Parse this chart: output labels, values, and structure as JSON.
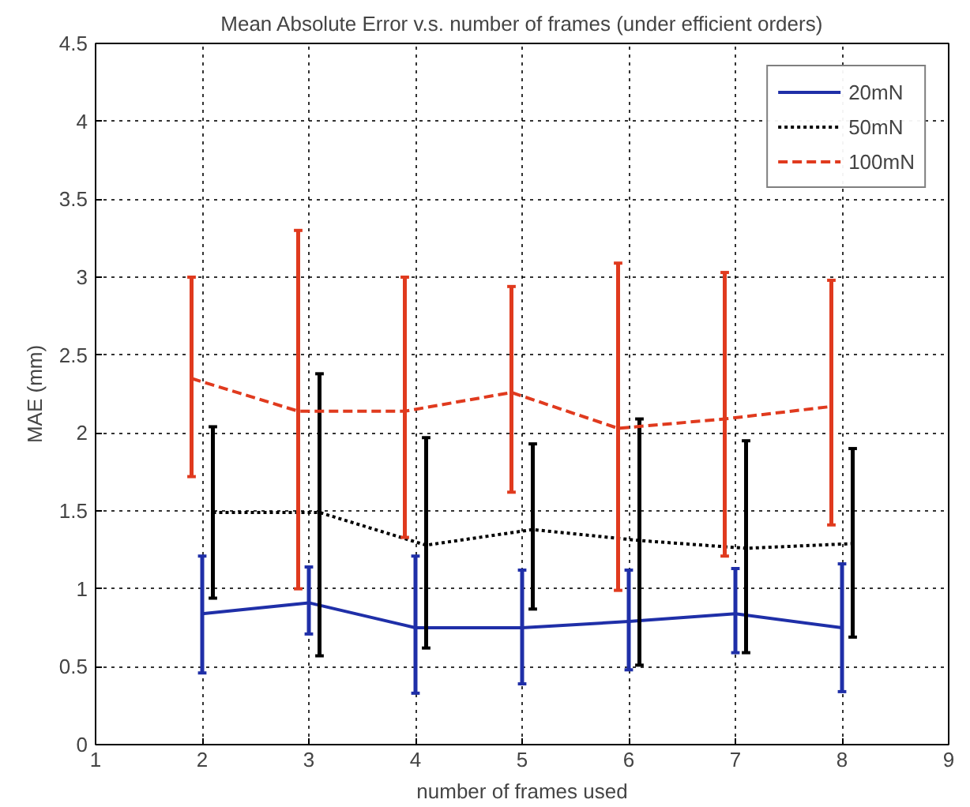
{
  "chart_data": {
    "type": "line",
    "title": "Mean Absolute Error v.s. number of frames (under efficient orders)",
    "xlabel": "number of frames used",
    "ylabel": "MAE (mm)",
    "xlim": [
      1,
      9
    ],
    "ylim": [
      0,
      4.5
    ],
    "xticks": [
      1,
      2,
      3,
      4,
      5,
      6,
      7,
      8,
      9
    ],
    "yticks": [
      0,
      0.5,
      1,
      1.5,
      2,
      2.5,
      3,
      3.5,
      4,
      4.5
    ],
    "grid": true,
    "legend": "top right",
    "series": [
      {
        "name": "20mN",
        "color": "#1f2fa8",
        "line_style": "solid",
        "x": [
          2,
          3,
          4,
          5,
          6,
          7,
          8
        ],
        "values": [
          0.84,
          0.91,
          0.75,
          0.75,
          0.79,
          0.84,
          0.75
        ],
        "errors": [
          [
            0.46,
            1.21
          ],
          [
            0.71,
            1.14
          ],
          [
            0.33,
            1.21
          ],
          [
            0.39,
            1.12
          ],
          [
            0.48,
            1.12
          ],
          [
            0.59,
            1.13
          ],
          [
            0.34,
            1.16
          ]
        ]
      },
      {
        "name": "50mN",
        "color": "#000000",
        "line_style": "dotted",
        "x": [
          2.1,
          3.1,
          4.1,
          5.1,
          6.1,
          7.1,
          8.1
        ],
        "values": [
          1.49,
          1.49,
          1.28,
          1.38,
          1.31,
          1.26,
          1.29
        ],
        "errors": [
          [
            0.94,
            2.04
          ],
          [
            0.57,
            2.38
          ],
          [
            0.62,
            1.97
          ],
          [
            0.87,
            1.93
          ],
          [
            0.51,
            2.09
          ],
          [
            0.59,
            1.95
          ],
          [
            0.69,
            1.9
          ]
        ]
      },
      {
        "name": "100mN",
        "color": "#e03a1e",
        "line_style": "dashed",
        "x": [
          1.9,
          2.9,
          3.9,
          4.9,
          5.9,
          6.9,
          7.9
        ],
        "values": [
          2.35,
          2.14,
          2.14,
          2.26,
          2.03,
          2.09,
          2.17
        ],
        "errors": [
          [
            1.72,
            3.0
          ],
          [
            1.0,
            3.3
          ],
          [
            1.33,
            3.0
          ],
          [
            1.62,
            2.94
          ],
          [
            0.99,
            3.09
          ],
          [
            1.21,
            3.03
          ],
          [
            1.41,
            2.98
          ]
        ]
      }
    ]
  }
}
